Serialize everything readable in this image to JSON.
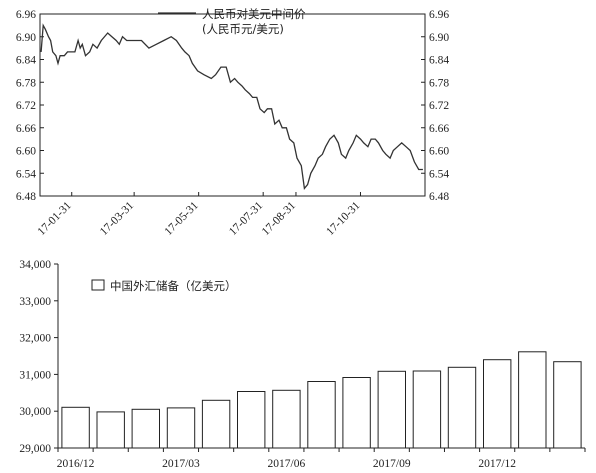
{
  "chart_data": [
    {
      "type": "line",
      "series": [
        {
          "name": "人民币对美元中间价"
        }
      ],
      "legend": {
        "line1": "人民币对美元中间价",
        "line2": "(人民币元/美元)",
        "position": "top-center"
      },
      "ylim": [
        6.48,
        6.96
      ],
      "yticks": [
        "6.96",
        "6.90",
        "6.84",
        "6.78",
        "6.72",
        "6.66",
        "6.60",
        "6.54",
        "6.48"
      ],
      "xlim": [
        "2017-01-01",
        "2017-12-31"
      ],
      "xticks": [
        "17-01-31",
        "17-03-31",
        "17-05-31",
        "17-07-31",
        "17-08-31",
        "17-10-31"
      ],
      "points": [
        [
          "2017-01-02",
          6.86
        ],
        [
          "2017-01-04",
          6.93
        ],
        [
          "2017-01-06",
          6.92
        ],
        [
          "2017-01-09",
          6.9
        ],
        [
          "2017-01-11",
          6.89
        ],
        [
          "2017-01-13",
          6.86
        ],
        [
          "2017-01-16",
          6.85
        ],
        [
          "2017-01-18",
          6.83
        ],
        [
          "2017-01-20",
          6.85
        ],
        [
          "2017-01-24",
          6.85
        ],
        [
          "2017-01-27",
          6.86
        ],
        [
          "2017-02-03",
          6.86
        ],
        [
          "2017-02-06",
          6.89
        ],
        [
          "2017-02-08",
          6.87
        ],
        [
          "2017-02-10",
          6.88
        ],
        [
          "2017-02-13",
          6.85
        ],
        [
          "2017-02-17",
          6.86
        ],
        [
          "2017-02-20",
          6.88
        ],
        [
          "2017-02-24",
          6.87
        ],
        [
          "2017-02-28",
          6.89
        ],
        [
          "2017-03-06",
          6.91
        ],
        [
          "2017-03-10",
          6.9
        ],
        [
          "2017-03-14",
          6.89
        ],
        [
          "2017-03-17",
          6.88
        ],
        [
          "2017-03-20",
          6.9
        ],
        [
          "2017-03-24",
          6.89
        ],
        [
          "2017-03-31",
          6.89
        ],
        [
          "2017-04-07",
          6.89
        ],
        [
          "2017-04-14",
          6.87
        ],
        [
          "2017-04-21",
          6.88
        ],
        [
          "2017-04-28",
          6.89
        ],
        [
          "2017-05-05",
          6.9
        ],
        [
          "2017-05-10",
          6.89
        ],
        [
          "2017-05-15",
          6.87
        ],
        [
          "2017-05-18",
          6.86
        ],
        [
          "2017-05-22",
          6.85
        ],
        [
          "2017-05-25",
          6.83
        ],
        [
          "2017-05-30",
          6.81
        ],
        [
          "2017-06-05",
          6.8
        ],
        [
          "2017-06-12",
          6.79
        ],
        [
          "2017-06-16",
          6.8
        ],
        [
          "2017-06-21",
          6.82
        ],
        [
          "2017-06-26",
          6.82
        ],
        [
          "2017-06-30",
          6.78
        ],
        [
          "2017-07-04",
          6.79
        ],
        [
          "2017-07-07",
          6.78
        ],
        [
          "2017-07-11",
          6.77
        ],
        [
          "2017-07-14",
          6.76
        ],
        [
          "2017-07-18",
          6.75
        ],
        [
          "2017-07-21",
          6.74
        ],
        [
          "2017-07-25",
          6.74
        ],
        [
          "2017-07-28",
          6.71
        ],
        [
          "2017-08-01",
          6.7
        ],
        [
          "2017-08-04",
          6.71
        ],
        [
          "2017-08-08",
          6.71
        ],
        [
          "2017-08-11",
          6.67
        ],
        [
          "2017-08-15",
          6.68
        ],
        [
          "2017-08-18",
          6.66
        ],
        [
          "2017-08-22",
          6.66
        ],
        [
          "2017-08-25",
          6.63
        ],
        [
          "2017-08-29",
          6.62
        ],
        [
          "2017-09-01",
          6.58
        ],
        [
          "2017-09-05",
          6.56
        ],
        [
          "2017-09-08",
          6.5
        ],
        [
          "2017-09-11",
          6.51
        ],
        [
          "2017-09-14",
          6.54
        ],
        [
          "2017-09-18",
          6.56
        ],
        [
          "2017-09-21",
          6.58
        ],
        [
          "2017-09-25",
          6.59
        ],
        [
          "2017-09-28",
          6.61
        ],
        [
          "2017-10-02",
          6.63
        ],
        [
          "2017-10-06",
          6.64
        ],
        [
          "2017-10-10",
          6.62
        ],
        [
          "2017-10-13",
          6.59
        ],
        [
          "2017-10-17",
          6.58
        ],
        [
          "2017-10-20",
          6.6
        ],
        [
          "2017-10-24",
          6.62
        ],
        [
          "2017-10-27",
          6.64
        ],
        [
          "2017-10-31",
          6.63
        ],
        [
          "2017-11-03",
          6.62
        ],
        [
          "2017-11-07",
          6.61
        ],
        [
          "2017-11-10",
          6.63
        ],
        [
          "2017-11-14",
          6.63
        ],
        [
          "2017-11-17",
          6.62
        ],
        [
          "2017-11-21",
          6.6
        ],
        [
          "2017-11-24",
          6.59
        ],
        [
          "2017-11-28",
          6.58
        ],
        [
          "2017-12-01",
          6.6
        ],
        [
          "2017-12-05",
          6.61
        ],
        [
          "2017-12-09",
          6.62
        ],
        [
          "2017-12-13",
          6.61
        ],
        [
          "2017-12-17",
          6.6
        ],
        [
          "2017-12-21",
          6.57
        ],
        [
          "2017-12-25",
          6.55
        ],
        [
          "2017-12-29",
          6.55
        ]
      ]
    },
    {
      "type": "bar",
      "series": [
        {
          "name": "中国外汇储备（亿美元）"
        }
      ],
      "legend": {
        "label": "中国外汇储备（亿美元）",
        "position": "top-left"
      },
      "ylim": [
        29000,
        34000
      ],
      "yticks": [
        "34,000",
        "33,000",
        "32,000",
        "31,000",
        "30,000",
        "29,000"
      ],
      "categories": [
        "2016-12",
        "2017-01",
        "2017-02",
        "2017-03",
        "2017-04",
        "2017-05",
        "2017-06",
        "2017-07",
        "2017-08",
        "2017-09",
        "2017-10",
        "2017-11",
        "2017-12",
        "2018-01",
        "2018-02"
      ],
      "values": [
        30105,
        29982,
        30051,
        30091,
        30295,
        30536,
        30568,
        30807,
        30915,
        31085,
        31093,
        31193,
        31399,
        31615,
        31345
      ],
      "xticks": [
        "2016/12",
        "2017/03",
        "2017/06",
        "2017/09",
        "2017/12"
      ]
    }
  ]
}
